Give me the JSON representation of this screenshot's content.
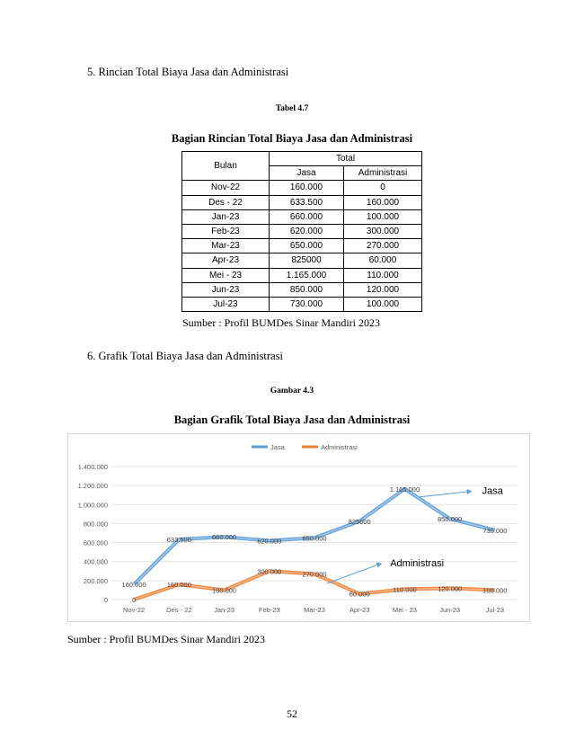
{
  "section5": "5. Rincian Total Biaya Jasa dan Administrasi",
  "table_caption": "Tabel 4.7",
  "table_title": "Bagian Rincian Total Biaya Jasa dan Administrasi",
  "table": {
    "col_bulan": "Bulan",
    "col_total": "Total",
    "col_jasa": "Jasa",
    "col_admin": "Administrasi",
    "rows": [
      {
        "bulan": "Nov-22",
        "jasa": "160.000",
        "admin": "0"
      },
      {
        "bulan": "Des - 22",
        "jasa": "633.500",
        "admin": "160.000"
      },
      {
        "bulan": "Jan-23",
        "jasa": "660.000",
        "admin": "100.000"
      },
      {
        "bulan": "Feb-23",
        "jasa": "620.000",
        "admin": "300.000"
      },
      {
        "bulan": "Mar-23",
        "jasa": "650.000",
        "admin": "270.000"
      },
      {
        "bulan": "Apr-23",
        "jasa": "825000",
        "admin": "60.000"
      },
      {
        "bulan": "Mei - 23",
        "jasa": "1.165.000",
        "admin": "110.000"
      },
      {
        "bulan": "Jun-23",
        "jasa": "850.000",
        "admin": "120.000"
      },
      {
        "bulan": "Jul-23",
        "jasa": "730.000",
        "admin": "100.000"
      }
    ]
  },
  "table_source": "Sumber : Profil BUMDes Sinar Mandiri 2023",
  "section6": "6. Grafik Total Biaya Jasa dan Administrasi",
  "figure_caption": "Gambar 4.3",
  "figure_title": "Bagian Grafik Total Biaya Jasa dan Administrasi",
  "chart_data": {
    "type": "line",
    "categories": [
      "Nov-22",
      "Des - 22",
      "Jan-23",
      "Feb-23",
      "Mar-23",
      "Apr-23",
      "Mei - 23",
      "Jun-23",
      "Jul-23"
    ],
    "series": [
      {
        "name": "Jasa",
        "values": [
          160000,
          633500,
          660000,
          620000,
          650000,
          825000,
          1165000,
          850000,
          730000
        ],
        "labels": [
          "160.000",
          "633.500",
          "660.000",
          "620.000",
          "650.000",
          "825000",
          "1.165.000",
          "850.000",
          "730.000"
        ],
        "color": "#5b9bd5"
      },
      {
        "name": "Administrasi",
        "values": [
          0,
          160000,
          100000,
          300000,
          270000,
          60000,
          110000,
          120000,
          100000
        ],
        "labels": [
          "0",
          "160.000",
          "100.000",
          "300.000",
          "270.000",
          "60.000",
          "110.000",
          "120.000",
          "100.000"
        ],
        "color": "#ed7d31"
      }
    ],
    "yticks": [
      "0",
      "200.000",
      "400.000",
      "600.000",
      "800.000",
      "1.000.000",
      "1.200.000",
      "1.400.000"
    ],
    "ylim": [
      0,
      1400000
    ],
    "grid": true,
    "legend": "top",
    "annotations": [
      {
        "text": "Jasa",
        "x": "Jun-23",
        "y": 1150000
      },
      {
        "text": "Administrasi",
        "x": "May-23",
        "y": 390000
      }
    ]
  },
  "figure_source": "Sumber : Profil BUMDes Sinar Mandiri 2023",
  "page_number": "52"
}
